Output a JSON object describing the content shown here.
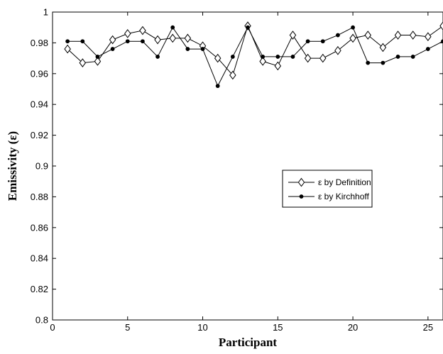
{
  "chart_data": {
    "type": "line",
    "title": "",
    "xlabel": "Participant",
    "ylabel": "Emissivity (ε)",
    "xlim": [
      0,
      26
    ],
    "ylim": [
      0.8,
      1.0
    ],
    "xticks": [
      0,
      5,
      10,
      15,
      20,
      25
    ],
    "xtick_labels": [
      "0",
      "5",
      "10",
      "15",
      "20",
      "25"
    ],
    "yticks": [
      0.8,
      0.82,
      0.84,
      0.86,
      0.88,
      0.9,
      0.92,
      0.94,
      0.96,
      0.98,
      1.0
    ],
    "ytick_labels": [
      "0.8",
      "0.82",
      "0.84",
      "0.86",
      "0.88",
      "0.9",
      "0.92",
      "0.94",
      "0.96",
      "0.98",
      "1"
    ],
    "grid": false,
    "legend_position": "center-right",
    "x": [
      1,
      2,
      3,
      4,
      5,
      6,
      7,
      8,
      9,
      10,
      11,
      12,
      13,
      14,
      15,
      16,
      17,
      18,
      19,
      20,
      21,
      22,
      23,
      24,
      25,
      26
    ],
    "series": [
      {
        "name": "ε by Definition",
        "marker": "diamond-open",
        "color": "#000000",
        "values": [
          0.976,
          0.967,
          0.968,
          0.982,
          0.986,
          0.988,
          0.982,
          0.983,
          0.983,
          0.978,
          0.97,
          0.959,
          0.991,
          0.968,
          0.965,
          0.985,
          0.97,
          0.97,
          0.975,
          0.983,
          0.985,
          0.977,
          0.985,
          0.985,
          0.984,
          0.991
        ]
      },
      {
        "name": "ε by Kirchhoff",
        "marker": "dot-filled",
        "color": "#000000",
        "values": [
          0.981,
          0.981,
          0.971,
          0.976,
          0.981,
          0.981,
          0.971,
          0.99,
          0.976,
          0.976,
          0.952,
          0.971,
          0.99,
          0.971,
          0.971,
          0.971,
          0.981,
          0.981,
          0.985,
          0.99,
          0.967,
          0.967,
          0.971,
          0.971,
          0.976,
          0.981
        ]
      }
    ]
  }
}
